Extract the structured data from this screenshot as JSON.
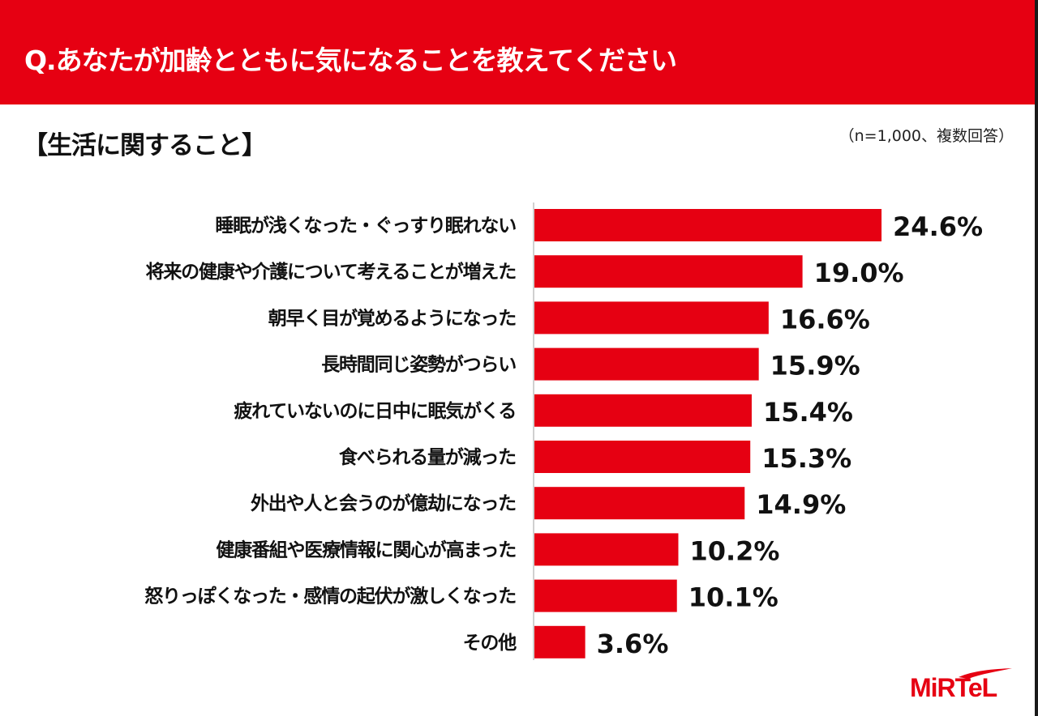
{
  "header": {
    "title": "Q.あなたが加齢とともに気になることを教えてください"
  },
  "section": {
    "subtitle": "【生活に関すること】",
    "note": "（n=1,000、複数回答）"
  },
  "brand": {
    "logo_text": "MiRTeL",
    "accent_color": "#e60012"
  },
  "chart_data": {
    "type": "bar",
    "orientation": "horizontal",
    "title": "Q.あなたが加齢とともに気になることを教えてください",
    "subtitle": "【生活に関すること】",
    "xlabel": "",
    "ylabel": "",
    "xlim": [
      0,
      25
    ],
    "grid": false,
    "legend": "none",
    "bar_color": "#e60012",
    "categories": [
      "睡眠が浅くなった・ぐっすり眠れない",
      "将来の健康や介護について考えることが増えた",
      "朝早く目が覚めるようになった",
      "長時間同じ姿勢がつらい",
      "疲れていないのに日中に眠気がくる",
      "食べられる量が減った",
      "外出や人と会うのが億劫になった",
      "健康番組や医療情報に関心が高まった",
      "怒りっぽくなった・感情の起伏が激しくなった",
      "その他"
    ],
    "values": [
      24.6,
      19.0,
      16.6,
      15.9,
      15.4,
      15.3,
      14.9,
      10.2,
      10.1,
      3.6
    ],
    "value_labels": [
      "24.6%",
      "19.0%",
      "16.6%",
      "15.9%",
      "15.4%",
      "15.3%",
      "14.9%",
      "10.2%",
      "10.1%",
      "3.6%"
    ]
  }
}
